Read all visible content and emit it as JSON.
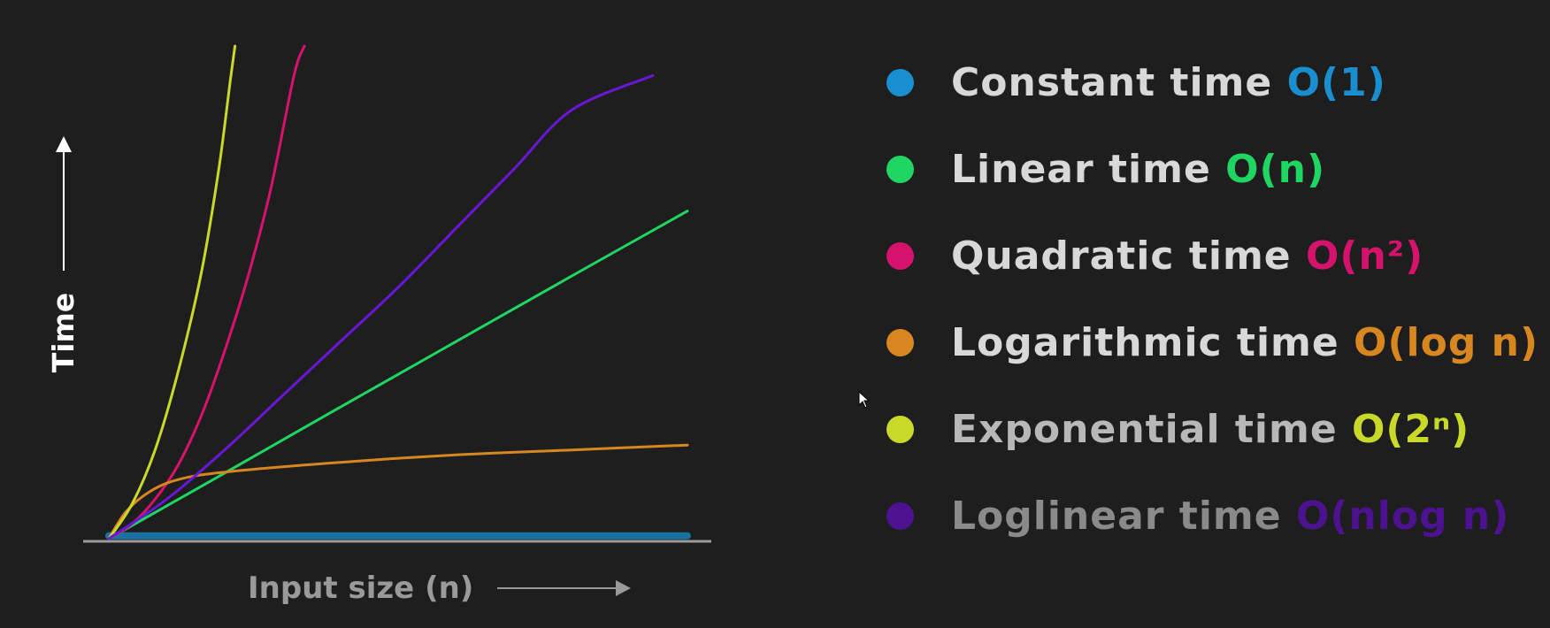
{
  "chart_data": {
    "type": "line",
    "title": "",
    "xlabel": "Input size (n)",
    "ylabel": "Time",
    "grid": false,
    "legend_position": "right",
    "xlim": [
      0,
      10
    ],
    "ylim": [
      0,
      10
    ],
    "series": [
      {
        "name": "Constant time",
        "notation": "O(1)",
        "color": "#1a8fd0",
        "points": [
          [
            0,
            0.06
          ],
          [
            10,
            0.06
          ]
        ]
      },
      {
        "name": "Linear time",
        "notation": "O(n)",
        "color": "#1fd662",
        "points": [
          [
            0,
            0
          ],
          [
            2,
            1.33
          ],
          [
            4,
            2.67
          ],
          [
            6,
            4.0
          ],
          [
            8,
            5.33
          ],
          [
            10,
            6.65
          ]
        ]
      },
      {
        "name": "Quadratic time",
        "notation": "O(n²)",
        "color": "#d6136c",
        "points": [
          [
            0,
            0
          ],
          [
            0.4,
            0.3
          ],
          [
            0.8,
            0.8
          ],
          [
            1.2,
            1.5
          ],
          [
            1.6,
            2.5
          ],
          [
            2.0,
            3.8
          ],
          [
            2.4,
            5.3
          ],
          [
            2.8,
            7.1
          ],
          [
            3.2,
            9.4
          ],
          [
            3.38,
            10
          ]
        ]
      },
      {
        "name": "Logarithmic time",
        "notation": "O(log n)",
        "color": "#d88620",
        "points": [
          [
            0,
            0
          ],
          [
            0.3,
            0.55
          ],
          [
            0.7,
            0.95
          ],
          [
            1.2,
            1.2
          ],
          [
            2,
            1.35
          ],
          [
            4,
            1.55
          ],
          [
            6,
            1.7
          ],
          [
            8,
            1.8
          ],
          [
            10,
            1.9
          ]
        ]
      },
      {
        "name": "Exponential time",
        "notation": "O(2ⁿ)",
        "color": "#c9d92a",
        "points": [
          [
            0,
            0
          ],
          [
            0.4,
            0.7
          ],
          [
            0.8,
            1.8
          ],
          [
            1.2,
            3.4
          ],
          [
            1.6,
            5.4
          ],
          [
            1.9,
            7.5
          ],
          [
            2.1,
            9.3
          ],
          [
            2.18,
            10
          ]
        ]
      },
      {
        "name": "Loglinear time",
        "notation": "O(nlog n)",
        "color": "#6a16d6",
        "points": [
          [
            0,
            0
          ],
          [
            1,
            0.8
          ],
          [
            2,
            1.8
          ],
          [
            3,
            2.9
          ],
          [
            4,
            4.0
          ],
          [
            5,
            5.1
          ],
          [
            6,
            6.3
          ],
          [
            7,
            7.5
          ],
          [
            8,
            8.7
          ],
          [
            9.4,
            9.4
          ]
        ]
      }
    ]
  },
  "legend": {
    "items": [
      {
        "label": "Constant time",
        "notation": "O(1)",
        "dot_color": "#1a8fd0",
        "label_color": "#d8d8d8",
        "notation_color": "#1a8fd0"
      },
      {
        "label": "Linear time",
        "notation": "O(n)",
        "dot_color": "#1fd662",
        "label_color": "#d8d8d8",
        "notation_color": "#1fd662"
      },
      {
        "label": "Quadratic time",
        "notation": "O(n²)",
        "dot_color": "#d6136c",
        "label_color": "#d8d8d8",
        "notation_color": "#d6136c"
      },
      {
        "label": "Logarithmic time",
        "notation": "O(log n)",
        "dot_color": "#d88620",
        "label_color": "#d8d8d8",
        "notation_color": "#d88620"
      },
      {
        "label": "Exponential time",
        "notation": "O(2ⁿ)",
        "dot_color": "#c9d92a",
        "label_color": "#b8b8b8",
        "notation_color": "#c9d92a"
      },
      {
        "label": "Loglinear time",
        "notation": "O(nlog n)",
        "dot_color": "#4d1290",
        "label_color": "#8a8a8a",
        "notation_color": "#4d1290"
      }
    ]
  },
  "colors": {
    "background": "#1e1e1f",
    "axis": "#9a9a9a"
  }
}
